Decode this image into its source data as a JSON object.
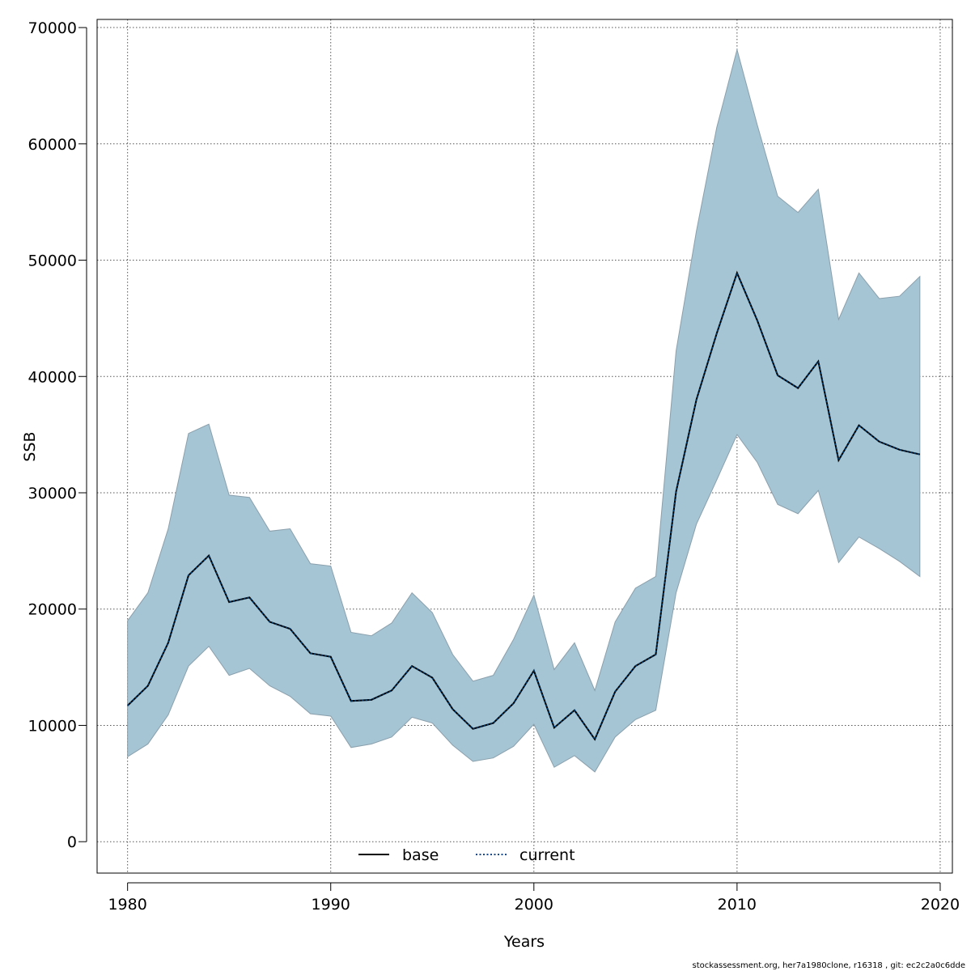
{
  "chart_data": {
    "type": "line",
    "xlabel": "Years",
    "ylabel": "SSB",
    "xlim": [
      1978.5,
      2020.6
    ],
    "ylim": [
      -2700,
      70700
    ],
    "xticks": [
      1980,
      1990,
      2000,
      2010,
      2020
    ],
    "yticks": [
      0,
      10000,
      20000,
      30000,
      40000,
      50000,
      60000,
      70000
    ],
    "xtick_labels": [
      "1980",
      "1990",
      "2000",
      "2010",
      "2020"
    ],
    "ytick_labels": [
      "0",
      "10000",
      "20000",
      "30000",
      "40000",
      "50000",
      "60000",
      "70000"
    ],
    "grid": true,
    "legend": {
      "position": "bottom-center",
      "entries": [
        {
          "label": "base",
          "style": "solid",
          "color": "#000000"
        },
        {
          "label": "current",
          "style": "dotted",
          "color": "#1a4a8a"
        }
      ]
    },
    "colors": {
      "band": "#a5c4d4",
      "band_edge": "#8aa0ac",
      "base_line": "#000000",
      "current_line": "#003a6b",
      "grid": "#555555"
    },
    "x": [
      1980,
      1981,
      1982,
      1983,
      1984,
      1985,
      1986,
      1987,
      1988,
      1989,
      1990,
      1991,
      1992,
      1993,
      1994,
      1995,
      1996,
      1997,
      1998,
      1999,
      2000,
      2001,
      2002,
      2003,
      2004,
      2005,
      2006,
      2007,
      2008,
      2009,
      2010,
      2011,
      2012,
      2013,
      2014,
      2015,
      2016,
      2017,
      2018,
      2019
    ],
    "series": [
      {
        "name": "base",
        "values": [
          11700,
          13400,
          17100,
          22900,
          24600,
          20600,
          21000,
          18900,
          18300,
          16200,
          15900,
          12100,
          12200,
          13000,
          15100,
          14100,
          11400,
          9700,
          10200,
          11900,
          14700,
          9800,
          11300,
          8800,
          12900,
          15100,
          16100,
          30100,
          38000,
          43700,
          48900,
          44800,
          40100,
          39000,
          41300,
          32800,
          35800,
          34400,
          33700,
          33300
        ]
      },
      {
        "name": "current",
        "values": [
          11700,
          13400,
          17100,
          22900,
          24600,
          20600,
          21000,
          18900,
          18300,
          16200,
          15900,
          12100,
          12200,
          13000,
          15100,
          14100,
          11400,
          9700,
          10200,
          11900,
          14700,
          9800,
          11300,
          8800,
          12900,
          15100,
          16100,
          30100,
          38000,
          43700,
          48900,
          44800,
          40100,
          39000,
          41300,
          32800,
          35800,
          34400,
          33700,
          33300
        ]
      }
    ],
    "band_upper": [
      19000,
      21400,
      26900,
      35100,
      35900,
      29800,
      29600,
      26700,
      26900,
      23900,
      23700,
      18000,
      17700,
      18800,
      21400,
      19700,
      16100,
      13800,
      14300,
      17400,
      21200,
      14800,
      17100,
      13000,
      18900,
      21800,
      22800,
      42200,
      52500,
      61400,
      68100,
      61600,
      55500,
      54100,
      56100,
      44900,
      48900,
      46700,
      46900,
      48600
    ],
    "band_lower": [
      7300,
      8400,
      10900,
      15100,
      16800,
      14300,
      14900,
      13400,
      12500,
      11000,
      10800,
      8100,
      8400,
      9000,
      10700,
      10200,
      8300,
      6900,
      7200,
      8200,
      10100,
      6400,
      7400,
      6000,
      9000,
      10500,
      11300,
      21400,
      27300,
      31100,
      35000,
      32600,
      29000,
      28200,
      30200,
      24000,
      26200,
      25200,
      24100,
      22800
    ]
  },
  "footer": "stockassessment.org, her7a1980clone, r16318 , git: ec2c2a0c6dde"
}
